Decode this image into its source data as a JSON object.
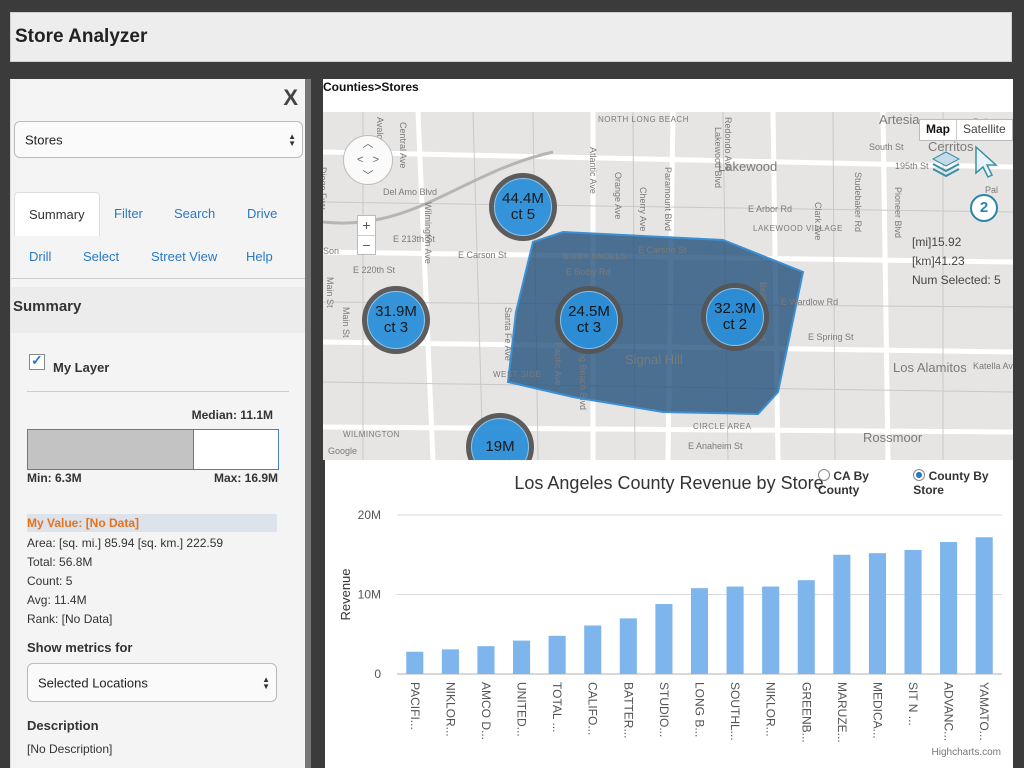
{
  "app": {
    "title": "Store Analyzer"
  },
  "panel": {
    "close_label": "X",
    "layer_select": "Stores",
    "tabs": [
      "Summary",
      "Filter",
      "Search",
      "Drive",
      "Drill",
      "Select",
      "Street View",
      "Help"
    ],
    "summary_title": "Summary",
    "layer_label": "My Layer",
    "layer_checked": true,
    "median": "Median: 11.1M",
    "median_fraction": 0.66,
    "min": "Min: 6.3M",
    "max": "Max: 16.9M",
    "my_value": "My Value: [No Data]",
    "area": "Area: [sq. mi.] 85.94 [sq. km.] 222.59",
    "total": "Total: 56.8M",
    "count": "Count: 5",
    "avg": "Avg: 11.4M",
    "rank": "Rank: [No Data]",
    "metrics_title": "Show metrics for",
    "metrics_select": "Selected Locations",
    "description_title": "Description",
    "description_value": "[No Description]"
  },
  "map": {
    "breadcrumb": "Counties>Stores",
    "map_button": "Map",
    "satellite_button": "Satellite",
    "zoom_in": "+",
    "zoom_out": "−",
    "selection_count_badge": "2",
    "dist_mi": "[mi]15.92",
    "dist_km": "[km]41.23",
    "num_selected": "Num Selected: 5",
    "place_labels": [
      "NORTH LONG BEACH",
      "Artesia",
      "Cerritos",
      "South St",
      "195th St",
      "Lakewood",
      "E Arbor Rd",
      "LAKEWOOD VILLAGE",
      "E Carson St",
      "Del Amo Blvd",
      "E 213th St",
      "E Carson St",
      "BIXBY KNOLLS",
      "E Bixby Rd",
      "E 220th St",
      "Signal Hill",
      "WEST SIDE",
      "E Wardlow Rd",
      "E Spring St",
      "Los Alamitos",
      "Katella Ave",
      "CIRCLE AREA",
      "Rossmoor",
      "E Anaheim St",
      "WILMINGTON",
      "Diego Fwy",
      "Paramount Blvd",
      "Pioneer Blvd",
      "Atlantic Ave",
      "Orange Ave",
      "Cherry Ave",
      "Wilmington Ave",
      "Central Ave",
      "Avalon Blvd",
      "Main St",
      "Bellflower Blvd",
      "Clark Ave",
      "Studebaker Rd",
      "Lakewood Blvd",
      "Santa Fe Ave",
      "Pacific Ave",
      "Long Beach Blvd",
      "Redondo Ave",
      "Main St",
      "Son",
      "Pal",
      "Google",
      "Bell"
    ],
    "clusters": [
      {
        "value": "44.4M",
        "count": "ct 5"
      },
      {
        "value": "31.9M",
        "count": "ct 3"
      },
      {
        "value": "24.5M",
        "count": "ct 3"
      },
      {
        "value": "32.3M",
        "count": "ct 2"
      },
      {
        "value": "19M",
        "count": ""
      }
    ]
  },
  "chart_options": {
    "option_ca": "CA By County",
    "option_county": "County By Store",
    "selected": "County By Store"
  },
  "colors": {
    "bar": "#7db5ec",
    "cluster": "#2b8fd9",
    "polygon": "#1f4e79",
    "my_value": "#e8711c",
    "link": "#2a79c4"
  },
  "chart_data": {
    "type": "bar",
    "title": "Los Angeles County Revenue by Store",
    "xlabel": "",
    "ylabel": "Revenue",
    "ylim": [
      0,
      20
    ],
    "yticks": [
      "0",
      "10M",
      "20M"
    ],
    "credits": "Highcharts.com",
    "categories": [
      "PACIFI...",
      "NIKLOR...",
      "AMCO D...",
      "UNITED...",
      "TOTAL ...",
      "CALIFO...",
      "BATTER...",
      "STUDIO...",
      "LONG B...",
      "SOUTHL...",
      "NIKLOR...",
      "GREENB...",
      "MARUZE...",
      "MEDICA...",
      "SIT N ...",
      "ADVANC...",
      "YAMATO..."
    ],
    "values": [
      2.8,
      3.1,
      3.5,
      4.2,
      4.8,
      6.1,
      7.0,
      8.8,
      10.8,
      11.0,
      11.0,
      11.8,
      15.0,
      15.2,
      15.6,
      16.6,
      17.2
    ]
  }
}
